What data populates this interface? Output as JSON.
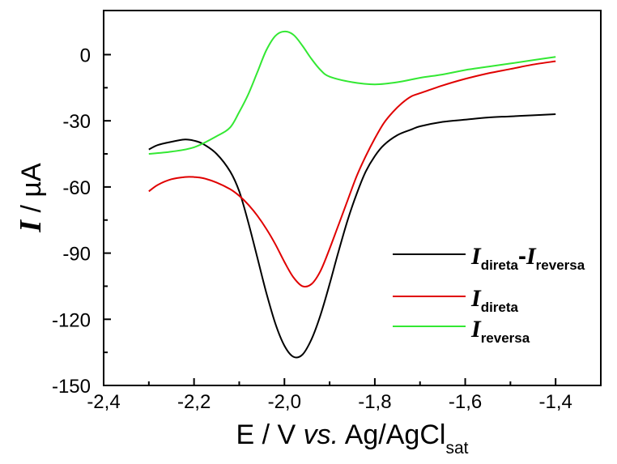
{
  "chart_data": {
    "type": "line",
    "xlabel": {
      "main": "E / V ",
      "italic": "vs.",
      "rest": " Ag/AgCl",
      "sub": "sat"
    },
    "ylabel": {
      "symbol": "I",
      "rest": " / µA"
    },
    "xlim": [
      -2.4,
      -1.3
    ],
    "ylim": [
      -150,
      20
    ],
    "x_ticks": [
      -2.4,
      -2.2,
      -2.0,
      -1.8,
      -1.6,
      -1.4
    ],
    "x_tick_labels": [
      "-2,4",
      "-2,2",
      "-2,0",
      "-1,8",
      "-1,6",
      "-1,4"
    ],
    "y_ticks": [
      -150,
      -120,
      -90,
      -60,
      -30,
      0
    ],
    "y_tick_labels": [
      "-150",
      "-120",
      "-90",
      "-60",
      "-30",
      "0"
    ],
    "grid": false,
    "legend_position": "bottom-right",
    "series": [
      {
        "legend": {
          "p1": "I",
          "s1": "direta",
          "dash": "-",
          "p2": "I",
          "s2": "reversa"
        },
        "color": "#000000",
        "points": [
          [
            -2.3,
            -43
          ],
          [
            -2.28,
            -41
          ],
          [
            -2.25,
            -39.5
          ],
          [
            -2.22,
            -38.5
          ],
          [
            -2.2,
            -39
          ],
          [
            -2.18,
            -40.5
          ],
          [
            -2.15,
            -45
          ],
          [
            -2.12,
            -53
          ],
          [
            -2.1,
            -62
          ],
          [
            -2.08,
            -76
          ],
          [
            -2.06,
            -92
          ],
          [
            -2.04,
            -108
          ],
          [
            -2.02,
            -122
          ],
          [
            -2.0,
            -132
          ],
          [
            -1.98,
            -137
          ],
          [
            -1.96,
            -136
          ],
          [
            -1.94,
            -129
          ],
          [
            -1.92,
            -118
          ],
          [
            -1.9,
            -104
          ],
          [
            -1.88,
            -89
          ],
          [
            -1.86,
            -75
          ],
          [
            -1.84,
            -63
          ],
          [
            -1.82,
            -53
          ],
          [
            -1.8,
            -46
          ],
          [
            -1.78,
            -41
          ],
          [
            -1.75,
            -36.5
          ],
          [
            -1.72,
            -34
          ],
          [
            -1.7,
            -32.5
          ],
          [
            -1.65,
            -30.5
          ],
          [
            -1.6,
            -29.5
          ],
          [
            -1.55,
            -28.5
          ],
          [
            -1.5,
            -28
          ],
          [
            -1.45,
            -27.5
          ],
          [
            -1.4,
            -27
          ]
        ]
      },
      {
        "legend": {
          "p1": "I",
          "s1": "direta"
        },
        "color": "#e00000",
        "points": [
          [
            -2.3,
            -62
          ],
          [
            -2.28,
            -59
          ],
          [
            -2.25,
            -56.5
          ],
          [
            -2.22,
            -55.5
          ],
          [
            -2.2,
            -55.5
          ],
          [
            -2.18,
            -56
          ],
          [
            -2.15,
            -58
          ],
          [
            -2.12,
            -61
          ],
          [
            -2.1,
            -64
          ],
          [
            -2.08,
            -68
          ],
          [
            -2.06,
            -73
          ],
          [
            -2.04,
            -79
          ],
          [
            -2.02,
            -86
          ],
          [
            -2.0,
            -94
          ],
          [
            -1.98,
            -101
          ],
          [
            -1.96,
            -105
          ],
          [
            -1.94,
            -104
          ],
          [
            -1.92,
            -98
          ],
          [
            -1.9,
            -88
          ],
          [
            -1.88,
            -77
          ],
          [
            -1.86,
            -66
          ],
          [
            -1.84,
            -55
          ],
          [
            -1.82,
            -46
          ],
          [
            -1.8,
            -38
          ],
          [
            -1.78,
            -31
          ],
          [
            -1.76,
            -26
          ],
          [
            -1.74,
            -22
          ],
          [
            -1.72,
            -19
          ],
          [
            -1.7,
            -17.5
          ],
          [
            -1.65,
            -14
          ],
          [
            -1.6,
            -11
          ],
          [
            -1.55,
            -8.5
          ],
          [
            -1.5,
            -6.5
          ],
          [
            -1.45,
            -4.5
          ],
          [
            -1.4,
            -3
          ]
        ]
      },
      {
        "legend": {
          "p1": "I",
          "s1": "reversa"
        },
        "color": "#33e833",
        "points": [
          [
            -2.3,
            -45
          ],
          [
            -2.25,
            -44
          ],
          [
            -2.2,
            -42
          ],
          [
            -2.15,
            -37
          ],
          [
            -2.12,
            -33
          ],
          [
            -2.1,
            -26
          ],
          [
            -2.08,
            -18
          ],
          [
            -2.06,
            -8
          ],
          [
            -2.04,
            2
          ],
          [
            -2.02,
            8.5
          ],
          [
            -2.0,
            10.5
          ],
          [
            -1.98,
            9
          ],
          [
            -1.96,
            4
          ],
          [
            -1.94,
            -2
          ],
          [
            -1.92,
            -7
          ],
          [
            -1.9,
            -10
          ],
          [
            -1.85,
            -12.5
          ],
          [
            -1.8,
            -13.5
          ],
          [
            -1.75,
            -12.5
          ],
          [
            -1.7,
            -10.5
          ],
          [
            -1.65,
            -9
          ],
          [
            -1.6,
            -7
          ],
          [
            -1.55,
            -5.5
          ],
          [
            -1.5,
            -4
          ],
          [
            -1.45,
            -2.5
          ],
          [
            -1.4,
            -1
          ]
        ]
      }
    ]
  }
}
